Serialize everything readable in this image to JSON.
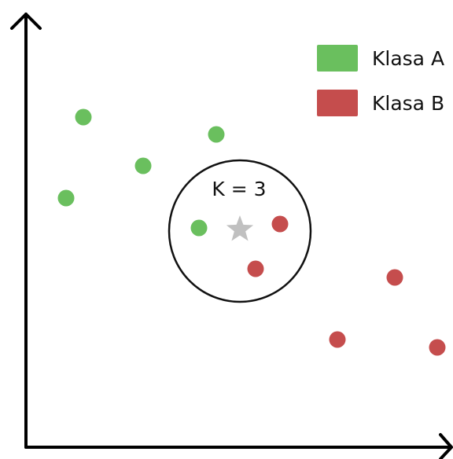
{
  "chart_data": {
    "type": "scatter",
    "xlabel": "",
    "ylabel": "",
    "legend_position": "top-right",
    "series": [
      {
        "name": "Klasa A",
        "color": "#6abf5e",
        "points": [
          [
            106,
            149
          ],
          [
            275,
            171
          ],
          [
            182,
            211
          ],
          [
            84,
            252
          ],
          [
            253,
            290
          ]
        ]
      },
      {
        "name": "Klasa B",
        "color": "#c54d4d",
        "points": [
          [
            356,
            285
          ],
          [
            325,
            342
          ],
          [
            502,
            353
          ],
          [
            429,
            432
          ],
          [
            556,
            442
          ]
        ]
      }
    ],
    "query_point": {
      "marker": "star-icon",
      "color": "#c0c0c0",
      "x": 305,
      "y": 292
    },
    "neighborhood": {
      "label": "K = 3",
      "center_x": 305,
      "center_y": 294,
      "radius": 90
    }
  },
  "legend": {
    "items": [
      {
        "label": "Klasa A",
        "color": "#6abf5e"
      },
      {
        "label": "Klasa B",
        "color": "#c54d4d"
      }
    ]
  }
}
